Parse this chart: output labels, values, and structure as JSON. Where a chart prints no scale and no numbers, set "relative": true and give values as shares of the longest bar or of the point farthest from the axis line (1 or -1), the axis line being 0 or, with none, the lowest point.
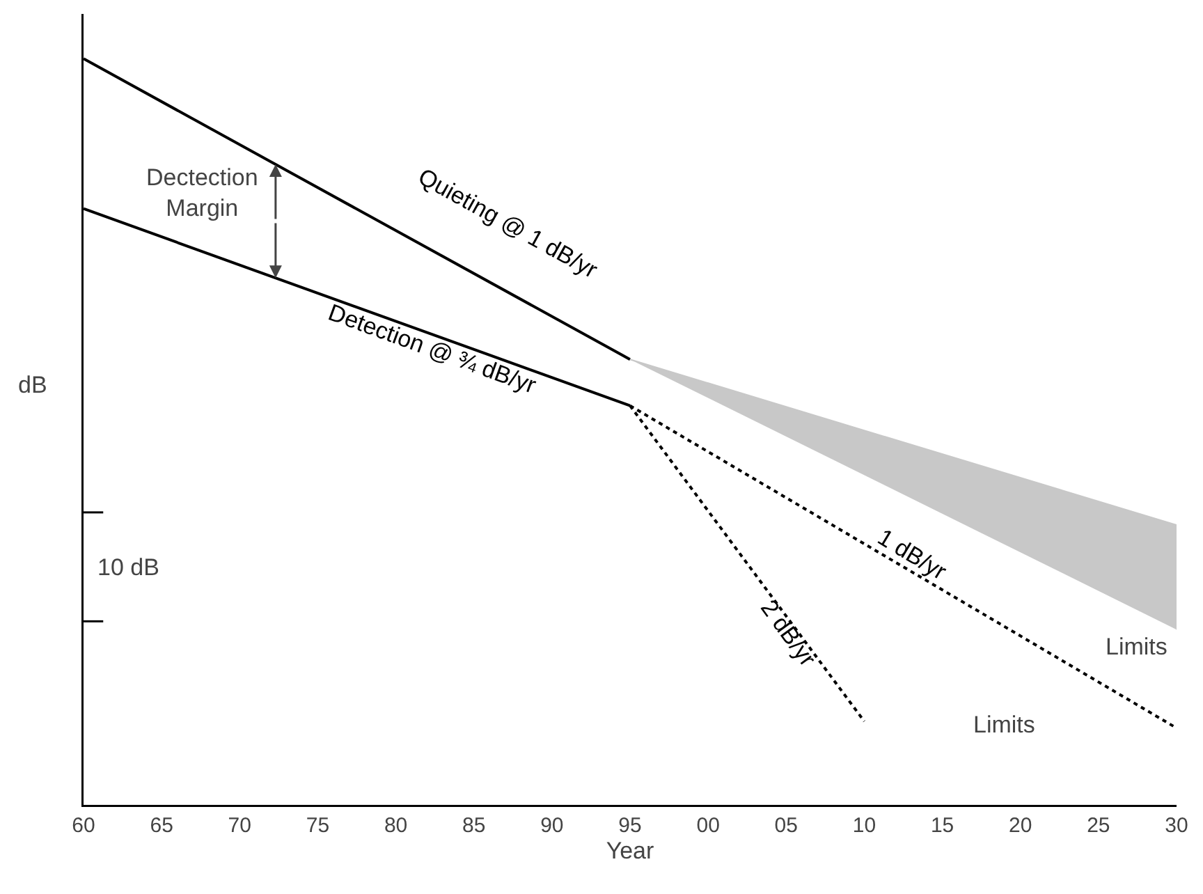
{
  "chart_data": {
    "type": "line",
    "relative": true,
    "xlabel": "Year",
    "ylabel": "dB",
    "xlim": [
      1960,
      2030
    ],
    "xticks": [
      {
        "value": 1960,
        "label": "60"
      },
      {
        "value": 1965,
        "label": "65"
      },
      {
        "value": 1970,
        "label": "70"
      },
      {
        "value": 1975,
        "label": "75"
      },
      {
        "value": 1980,
        "label": "80"
      },
      {
        "value": 1985,
        "label": "85"
      },
      {
        "value": 1990,
        "label": "90"
      },
      {
        "value": 1995,
        "label": "95"
      },
      {
        "value": 2000,
        "label": "00"
      },
      {
        "value": 2005,
        "label": "05"
      },
      {
        "value": 2010,
        "label": "10"
      },
      {
        "value": 2015,
        "label": "15"
      },
      {
        "value": 2020,
        "label": "20"
      },
      {
        "value": 2025,
        "label": "25"
      },
      {
        "value": 2030,
        "label": "30"
      }
    ],
    "grid": false,
    "legend": false,
    "marker": "none",
    "series": [
      {
        "name": "Quieting @ 1 dB/yr",
        "color": "#000000",
        "x": [
          1960,
          1995
        ],
        "values": [
          1.0,
          0.597
        ],
        "line_style": "solid"
      },
      {
        "name": "Detection @ ¾ dB/yr",
        "color": "#000000",
        "x": [
          1960,
          1995
        ],
        "values": [
          0.799,
          0.535
        ],
        "line_style": "solid"
      },
      {
        "name": "1 dB/yr",
        "color": "#000000",
        "x": [
          1995,
          2030
        ],
        "values": [
          0.535,
          0.103
        ],
        "line_style": "dotted"
      },
      {
        "name": "2 dB/yr",
        "color": "#000000",
        "x": [
          1995,
          2010
        ],
        "values": [
          0.535,
          0.112
        ],
        "line_style": "dotted"
      },
      {
        "type": "area",
        "color": "#c8c8c8",
        "x": [
          1995,
          2030,
          2030
        ],
        "values": [
          0.597,
          0.375,
          0.235
        ]
      }
    ],
    "annotations": [
      "Dectection\nMargin",
      "10 dB",
      "Limits",
      "Limits"
    ]
  }
}
